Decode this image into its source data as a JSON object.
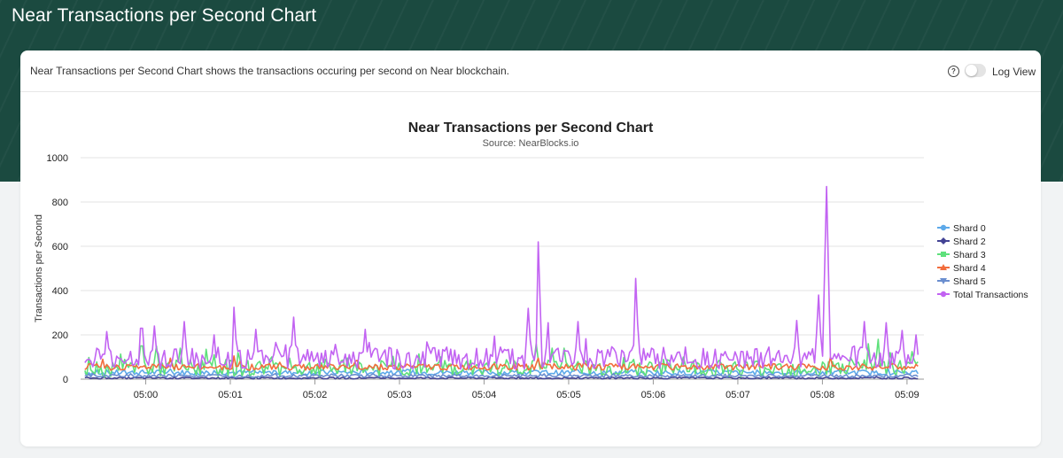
{
  "page": {
    "title": "Near Transactions per Second Chart"
  },
  "card": {
    "description": "Near Transactions per Second Chart shows the transactions occuring per second on Near blockchain.",
    "help_icon": "question-circle-icon",
    "log_view_label": "Log View",
    "log_view_enabled": false
  },
  "chart_data": {
    "type": "line",
    "title": "Near Transactions per Second Chart",
    "subtitle": "Source: NearBlocks.io",
    "ylabel": "Transactions per Second",
    "xlabel": "",
    "ylim": [
      0,
      1000
    ],
    "yticks": [
      "0",
      "200",
      "400",
      "600",
      "800",
      "1000"
    ],
    "xticks": [
      "05:00",
      "05:01",
      "05:02",
      "05:03",
      "05:04",
      "05:05",
      "05:06",
      "05:07",
      "05:08",
      "05:09"
    ],
    "xrange_minutes": [
      -0.77,
      9.2
    ],
    "grid": true,
    "legend_position": "right",
    "series": [
      {
        "name": "Shard 0",
        "color": "#5da9e9",
        "marker": "circle",
        "base": 30,
        "noise": 12,
        "spikes": []
      },
      {
        "name": "Shard 2",
        "color": "#434394",
        "marker": "diamond",
        "base": 5,
        "noise": 4,
        "spikes": []
      },
      {
        "name": "Shard 3",
        "color": "#5ee07b",
        "marker": "square",
        "base": 50,
        "noise": 40,
        "spikes": [
          [
            -0.05,
            150
          ],
          [
            0.12,
            150
          ],
          [
            0.4,
            140
          ],
          [
            0.8,
            110
          ],
          [
            1.1,
            120
          ],
          [
            1.5,
            100
          ],
          [
            1.7,
            95
          ],
          [
            4.62,
            160
          ],
          [
            4.8,
            140
          ],
          [
            4.95,
            140
          ],
          [
            8.55,
            160
          ],
          [
            8.65,
            180
          ],
          [
            8.8,
            120
          ]
        ]
      },
      {
        "name": "Shard 4",
        "color": "#f26d3d",
        "marker": "triangle",
        "base": 55,
        "noise": 15,
        "spikes": [
          [
            -0.5,
            90
          ],
          [
            0.3,
            95
          ],
          [
            1.05,
            105
          ],
          [
            2.5,
            85
          ],
          [
            4.65,
            95
          ],
          [
            8.1,
            100
          ]
        ]
      },
      {
        "name": "Shard 5",
        "color": "#6a8ecf",
        "marker": "triangle-down",
        "base": 15,
        "noise": 7,
        "spikes": []
      },
      {
        "name": "Total Transactions",
        "color": "#c263f2",
        "marker": "circle",
        "base": 95,
        "noise": 50,
        "spikes": [
          [
            -0.45,
            215
          ],
          [
            -0.05,
            230
          ],
          [
            0.1,
            240
          ],
          [
            0.45,
            260
          ],
          [
            0.8,
            200
          ],
          [
            1.05,
            325
          ],
          [
            1.3,
            225
          ],
          [
            1.75,
            280
          ],
          [
            2.6,
            225
          ],
          [
            4.52,
            320
          ],
          [
            4.65,
            620
          ],
          [
            4.75,
            255
          ],
          [
            5.1,
            260
          ],
          [
            5.8,
            455
          ],
          [
            7.7,
            265
          ],
          [
            7.95,
            380
          ],
          [
            8.05,
            870
          ],
          [
            8.5,
            260
          ],
          [
            8.75,
            255
          ],
          [
            8.95,
            220
          ],
          [
            9.1,
            200
          ]
        ]
      }
    ]
  }
}
